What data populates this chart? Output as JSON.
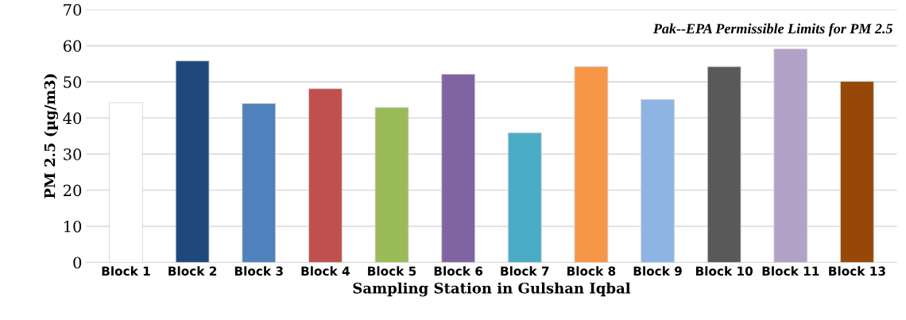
{
  "chart_data": {
    "type": "bar",
    "xlabel": "Sampling Station in Gulshan Iqbal",
    "ylabel": "PM 2.5 (µg/m3)",
    "annotations": [
      "Pak--EPA Permissible Limits for PM 2.5"
    ],
    "categories": [
      "Block 1",
      "Block 2",
      "Block 3",
      "Block 4",
      "Block 5",
      "Block 6",
      "Block 7",
      "Block 8",
      "Block 9",
      "Block 10",
      "Block 11",
      "Block 13"
    ],
    "values": [
      44.2,
      55.8,
      44,
      48.1,
      42.9,
      52.1,
      35.9,
      54.2,
      45.1,
      54.2,
      59.1,
      50.1
    ],
    "colors": [
      "#ffffff",
      "#1f497d",
      "#4f81bd",
      "#c0504d",
      "#9bbb59",
      "#8064a2",
      "#4bacc6",
      "#f79646",
      "#8eb4e3",
      "#595959",
      "#b3a2c7",
      "#974806"
    ],
    "ylim": [
      0,
      70
    ],
    "yticks": [
      0,
      10,
      20,
      30,
      40,
      50,
      60,
      70
    ],
    "grid": "y",
    "legend": false
  }
}
